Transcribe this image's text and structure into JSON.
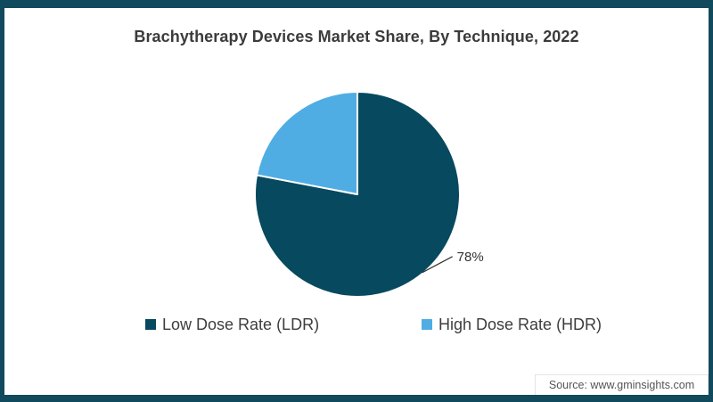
{
  "page": {
    "background": "#ffffff",
    "border_color": "#11495d"
  },
  "title": "Brachytherapy Devices Market Share, By Technique, 2022",
  "source": "Source: www.gminsights.com",
  "chart_data": {
    "type": "pie",
    "title": "Brachytherapy Devices Market Share, By Technique, 2022",
    "year": "2022",
    "slices": [
      {
        "label": "Low Dose Rate (LDR)",
        "value": 78,
        "color": "#07495f",
        "data_label": "78%"
      },
      {
        "label": "High Dose Rate (HDR)",
        "value": 22,
        "color": "#4fade3",
        "data_label": ""
      }
    ],
    "labeled_slice_index": 0,
    "start_angle_deg_from_top": 0,
    "direction": "clockwise",
    "separator_color": "#ffffff",
    "legend_position": "bottom"
  }
}
